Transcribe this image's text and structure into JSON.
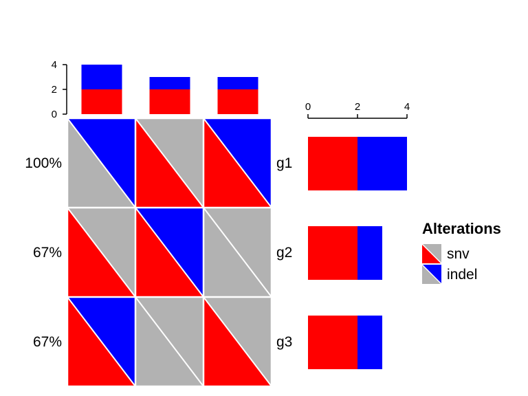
{
  "chart_data": {
    "type": "oncoprint",
    "colors": {
      "background": "#B2B2B2",
      "snv": "#FF0000",
      "indel": "#0000FF",
      "grid": "#FFFFFF"
    },
    "genes": [
      "g1",
      "g2",
      "g3"
    ],
    "gene_percent": [
      "100%",
      "67%",
      "67%"
    ],
    "sample_count": 3,
    "matrix": [
      [
        [
          "indel"
        ],
        [
          "snv"
        ],
        [
          "snv",
          "indel"
        ]
      ],
      [
        [
          "snv"
        ],
        [
          "snv",
          "indel"
        ],
        []
      ],
      [
        [
          "snv",
          "indel"
        ],
        [],
        [
          "snv"
        ]
      ]
    ],
    "top_barplot": {
      "ylim": [
        0,
        4
      ],
      "ticks": [
        "0",
        "2",
        "4"
      ],
      "series": [
        {
          "type": "snv",
          "values": [
            2,
            2,
            2
          ]
        },
        {
          "type": "indel",
          "values": [
            2,
            1,
            1
          ]
        }
      ]
    },
    "right_barplot": {
      "xlim": [
        0,
        4
      ],
      "ticks": [
        "0",
        "2",
        "4"
      ],
      "series": [
        {
          "type": "snv",
          "values": [
            2,
            2,
            2
          ]
        },
        {
          "type": "indel",
          "values": [
            2,
            1,
            1
          ]
        }
      ]
    },
    "legend": {
      "title": "Alterations",
      "items": [
        {
          "label": "snv",
          "type": "snv"
        },
        {
          "label": "indel",
          "type": "indel"
        }
      ]
    }
  }
}
